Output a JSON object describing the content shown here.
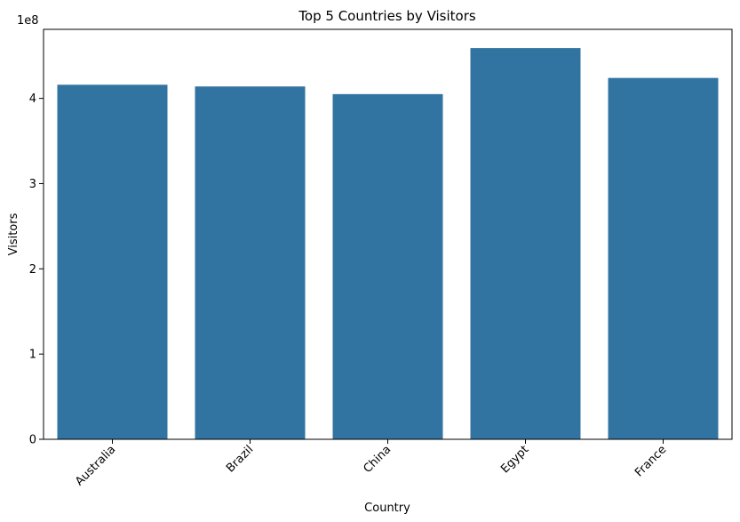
{
  "chart_data": {
    "type": "bar",
    "title": "Top 5 Countries by Visitors",
    "xlabel": "Country",
    "ylabel": "Visitors",
    "y_scale_label": "1e8",
    "categories": [
      "Australia",
      "Brazil",
      "China",
      "Egypt",
      "France"
    ],
    "values": [
      416000000,
      414000000,
      405000000,
      459000000,
      424000000
    ],
    "ylim": [
      0,
      481000000
    ],
    "yticks": [
      0,
      100000000,
      200000000,
      300000000,
      400000000
    ],
    "ytick_labels": [
      "0",
      "1",
      "2",
      "3",
      "4"
    ],
    "bar_color": "#3274a1",
    "grid": false,
    "legend": false
  }
}
